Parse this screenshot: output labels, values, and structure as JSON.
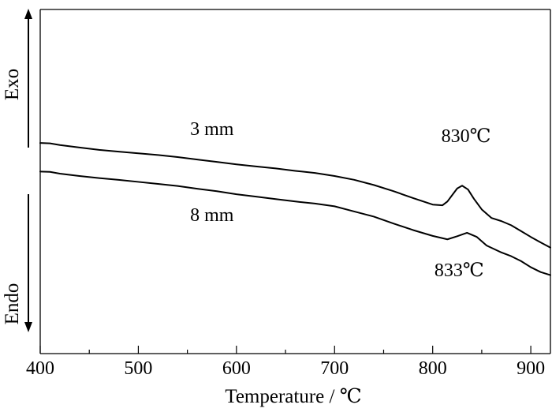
{
  "chart_data": {
    "type": "line",
    "xlabel": "Temperature / ℃",
    "ylabel_top": "Exo",
    "ylabel_bottom": "Endo",
    "xlim": [
      400,
      920
    ],
    "ylim": [
      0,
      100
    ],
    "xticks": [
      400,
      500,
      600,
      700,
      800,
      900
    ],
    "minor_xticks": [
      450,
      550,
      650,
      750,
      850
    ],
    "grid": false,
    "series": [
      {
        "name": "3 mm",
        "points": [
          [
            400,
            61.2
          ],
          [
            410,
            61.1
          ],
          [
            420,
            60.6
          ],
          [
            440,
            59.9
          ],
          [
            460,
            59.2
          ],
          [
            480,
            58.7
          ],
          [
            500,
            58.2
          ],
          [
            520,
            57.7
          ],
          [
            540,
            57.1
          ],
          [
            560,
            56.4
          ],
          [
            580,
            55.7
          ],
          [
            600,
            55.0
          ],
          [
            620,
            54.4
          ],
          [
            640,
            53.8
          ],
          [
            660,
            53.1
          ],
          [
            680,
            52.5
          ],
          [
            700,
            51.6
          ],
          [
            720,
            50.5
          ],
          [
            740,
            49.0
          ],
          [
            760,
            47.2
          ],
          [
            780,
            45.2
          ],
          [
            800,
            43.3
          ],
          [
            810,
            43.1
          ],
          [
            815,
            44.2
          ],
          [
            820,
            46.1
          ],
          [
            825,
            48.0
          ],
          [
            830,
            48.8
          ],
          [
            836,
            47.7
          ],
          [
            842,
            45.0
          ],
          [
            850,
            41.9
          ],
          [
            860,
            39.4
          ],
          [
            870,
            38.5
          ],
          [
            880,
            37.3
          ],
          [
            890,
            35.6
          ],
          [
            900,
            33.9
          ],
          [
            910,
            32.3
          ],
          [
            920,
            30.8
          ]
        ]
      },
      {
        "name": "8 mm",
        "points": [
          [
            400,
            52.9
          ],
          [
            410,
            52.8
          ],
          [
            420,
            52.3
          ],
          [
            440,
            51.6
          ],
          [
            460,
            51.0
          ],
          [
            480,
            50.5
          ],
          [
            500,
            49.9
          ],
          [
            520,
            49.3
          ],
          [
            540,
            48.7
          ],
          [
            560,
            47.9
          ],
          [
            580,
            47.2
          ],
          [
            600,
            46.3
          ],
          [
            620,
            45.6
          ],
          [
            640,
            44.9
          ],
          [
            660,
            44.2
          ],
          [
            680,
            43.6
          ],
          [
            700,
            42.8
          ],
          [
            720,
            41.3
          ],
          [
            740,
            39.8
          ],
          [
            760,
            37.8
          ],
          [
            780,
            35.9
          ],
          [
            800,
            34.2
          ],
          [
            815,
            33.2
          ],
          [
            825,
            34.1
          ],
          [
            835,
            35.1
          ],
          [
            845,
            33.9
          ],
          [
            855,
            31.4
          ],
          [
            870,
            29.4
          ],
          [
            880,
            28.3
          ],
          [
            890,
            26.9
          ],
          [
            900,
            25.1
          ],
          [
            910,
            23.7
          ],
          [
            920,
            22.8
          ]
        ]
      }
    ],
    "annotations": [
      {
        "text": "3 mm",
        "x": 575,
        "y": 63.5
      },
      {
        "text": "8 mm",
        "x": 575,
        "y": 38.5
      },
      {
        "text": "830℃",
        "x": 834,
        "y": 61.5
      },
      {
        "text": "833℃",
        "x": 827,
        "y": 22.5
      }
    ]
  }
}
